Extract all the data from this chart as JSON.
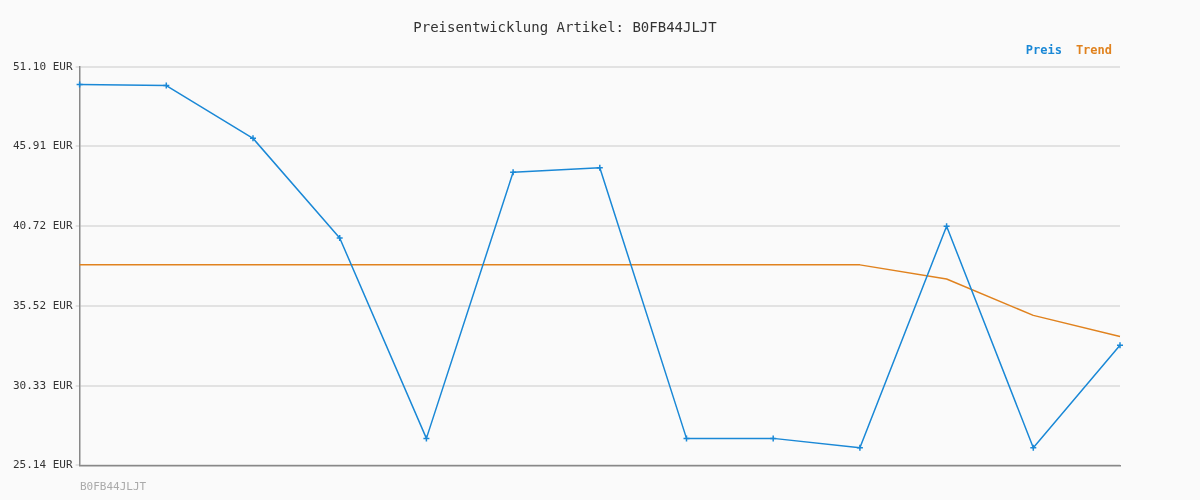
{
  "chart_data": {
    "type": "line",
    "title": "Preisentwicklung Artikel: B0FB44JLJT",
    "categories": [
      null,
      null,
      null,
      null,
      null,
      null,
      null,
      null,
      null,
      null,
      null,
      null,
      null
    ],
    "series": [
      {
        "name": "Preis",
        "color": "#1a88d6",
        "values": [
          49.95,
          49.88,
          46.44,
          39.95,
          26.9,
          44.23,
          44.53,
          26.9,
          26.9,
          26.29,
          40.72,
          26.29,
          32.97
        ]
      },
      {
        "name": "Trend",
        "color": "#e0821e",
        "marker": "none",
        "values": [
          38.2,
          38.2,
          38.2,
          38.2,
          38.2,
          38.2,
          38.2,
          38.2,
          38.2,
          38.2,
          37.28,
          34.91,
          33.54
        ]
      }
    ],
    "ylim": [
      25.14,
      51.1
    ],
    "yticks": [
      {
        "value": 25.14,
        "label": "25.14 EUR"
      },
      {
        "value": 30.33,
        "label": "30.33 EUR"
      },
      {
        "value": 35.52,
        "label": "35.52 EUR"
      },
      {
        "value": 40.72,
        "label": "40.72 EUR"
      },
      {
        "value": 45.91,
        "label": "45.91 EUR"
      },
      {
        "value": 51.1,
        "label": "51.10 EUR"
      }
    ],
    "grid": "y",
    "legend": "top right",
    "marker": "cross",
    "line_style": "solid",
    "tick_labels": "y",
    "annotations": [
      "B0FB44JLJT"
    ]
  }
}
